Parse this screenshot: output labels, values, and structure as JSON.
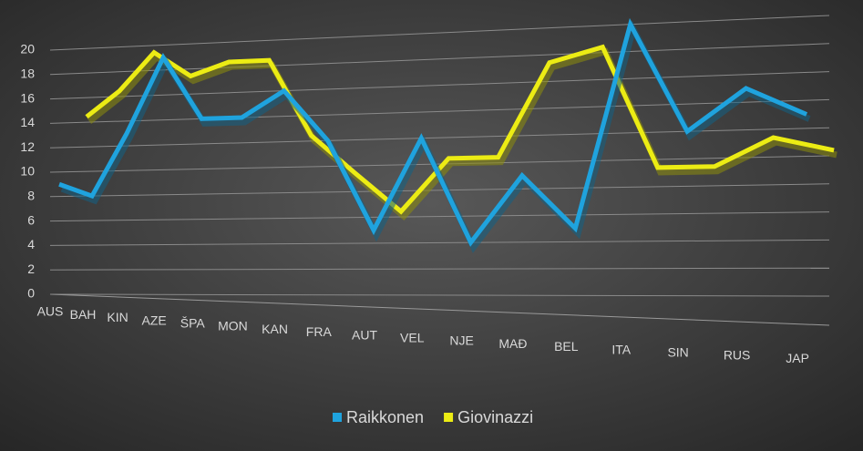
{
  "chart_data": {
    "type": "line",
    "categories": [
      "AUS",
      "BAH",
      "KIN",
      "AZE",
      "ŠPA",
      "MON",
      "KAN",
      "FRA",
      "AUT",
      "VEL",
      "NJE",
      "MAĐ",
      "BEL",
      "ITA",
      "SIN",
      "RUS",
      "JAP"
    ],
    "series": [
      {
        "name": "Raikkonen",
        "color": "#1fa3de",
        "values": [
          9,
          8,
          13,
          19,
          14,
          14,
          16,
          12,
          5,
          12,
          4,
          9,
          5,
          20,
          12,
          15,
          13
        ]
      },
      {
        "name": "Giovinazzi",
        "color": "#ecec14",
        "values": [
          14,
          16,
          19,
          17,
          18,
          18,
          12,
          9,
          6,
          10,
          10,
          17,
          18,
          9,
          9,
          11,
          10
        ]
      }
    ],
    "ylim": [
      0,
      20
    ],
    "yticks": [
      0,
      2,
      4,
      6,
      8,
      10,
      12,
      14,
      16,
      18,
      20
    ],
    "grid": true,
    "legend": "bottom"
  }
}
